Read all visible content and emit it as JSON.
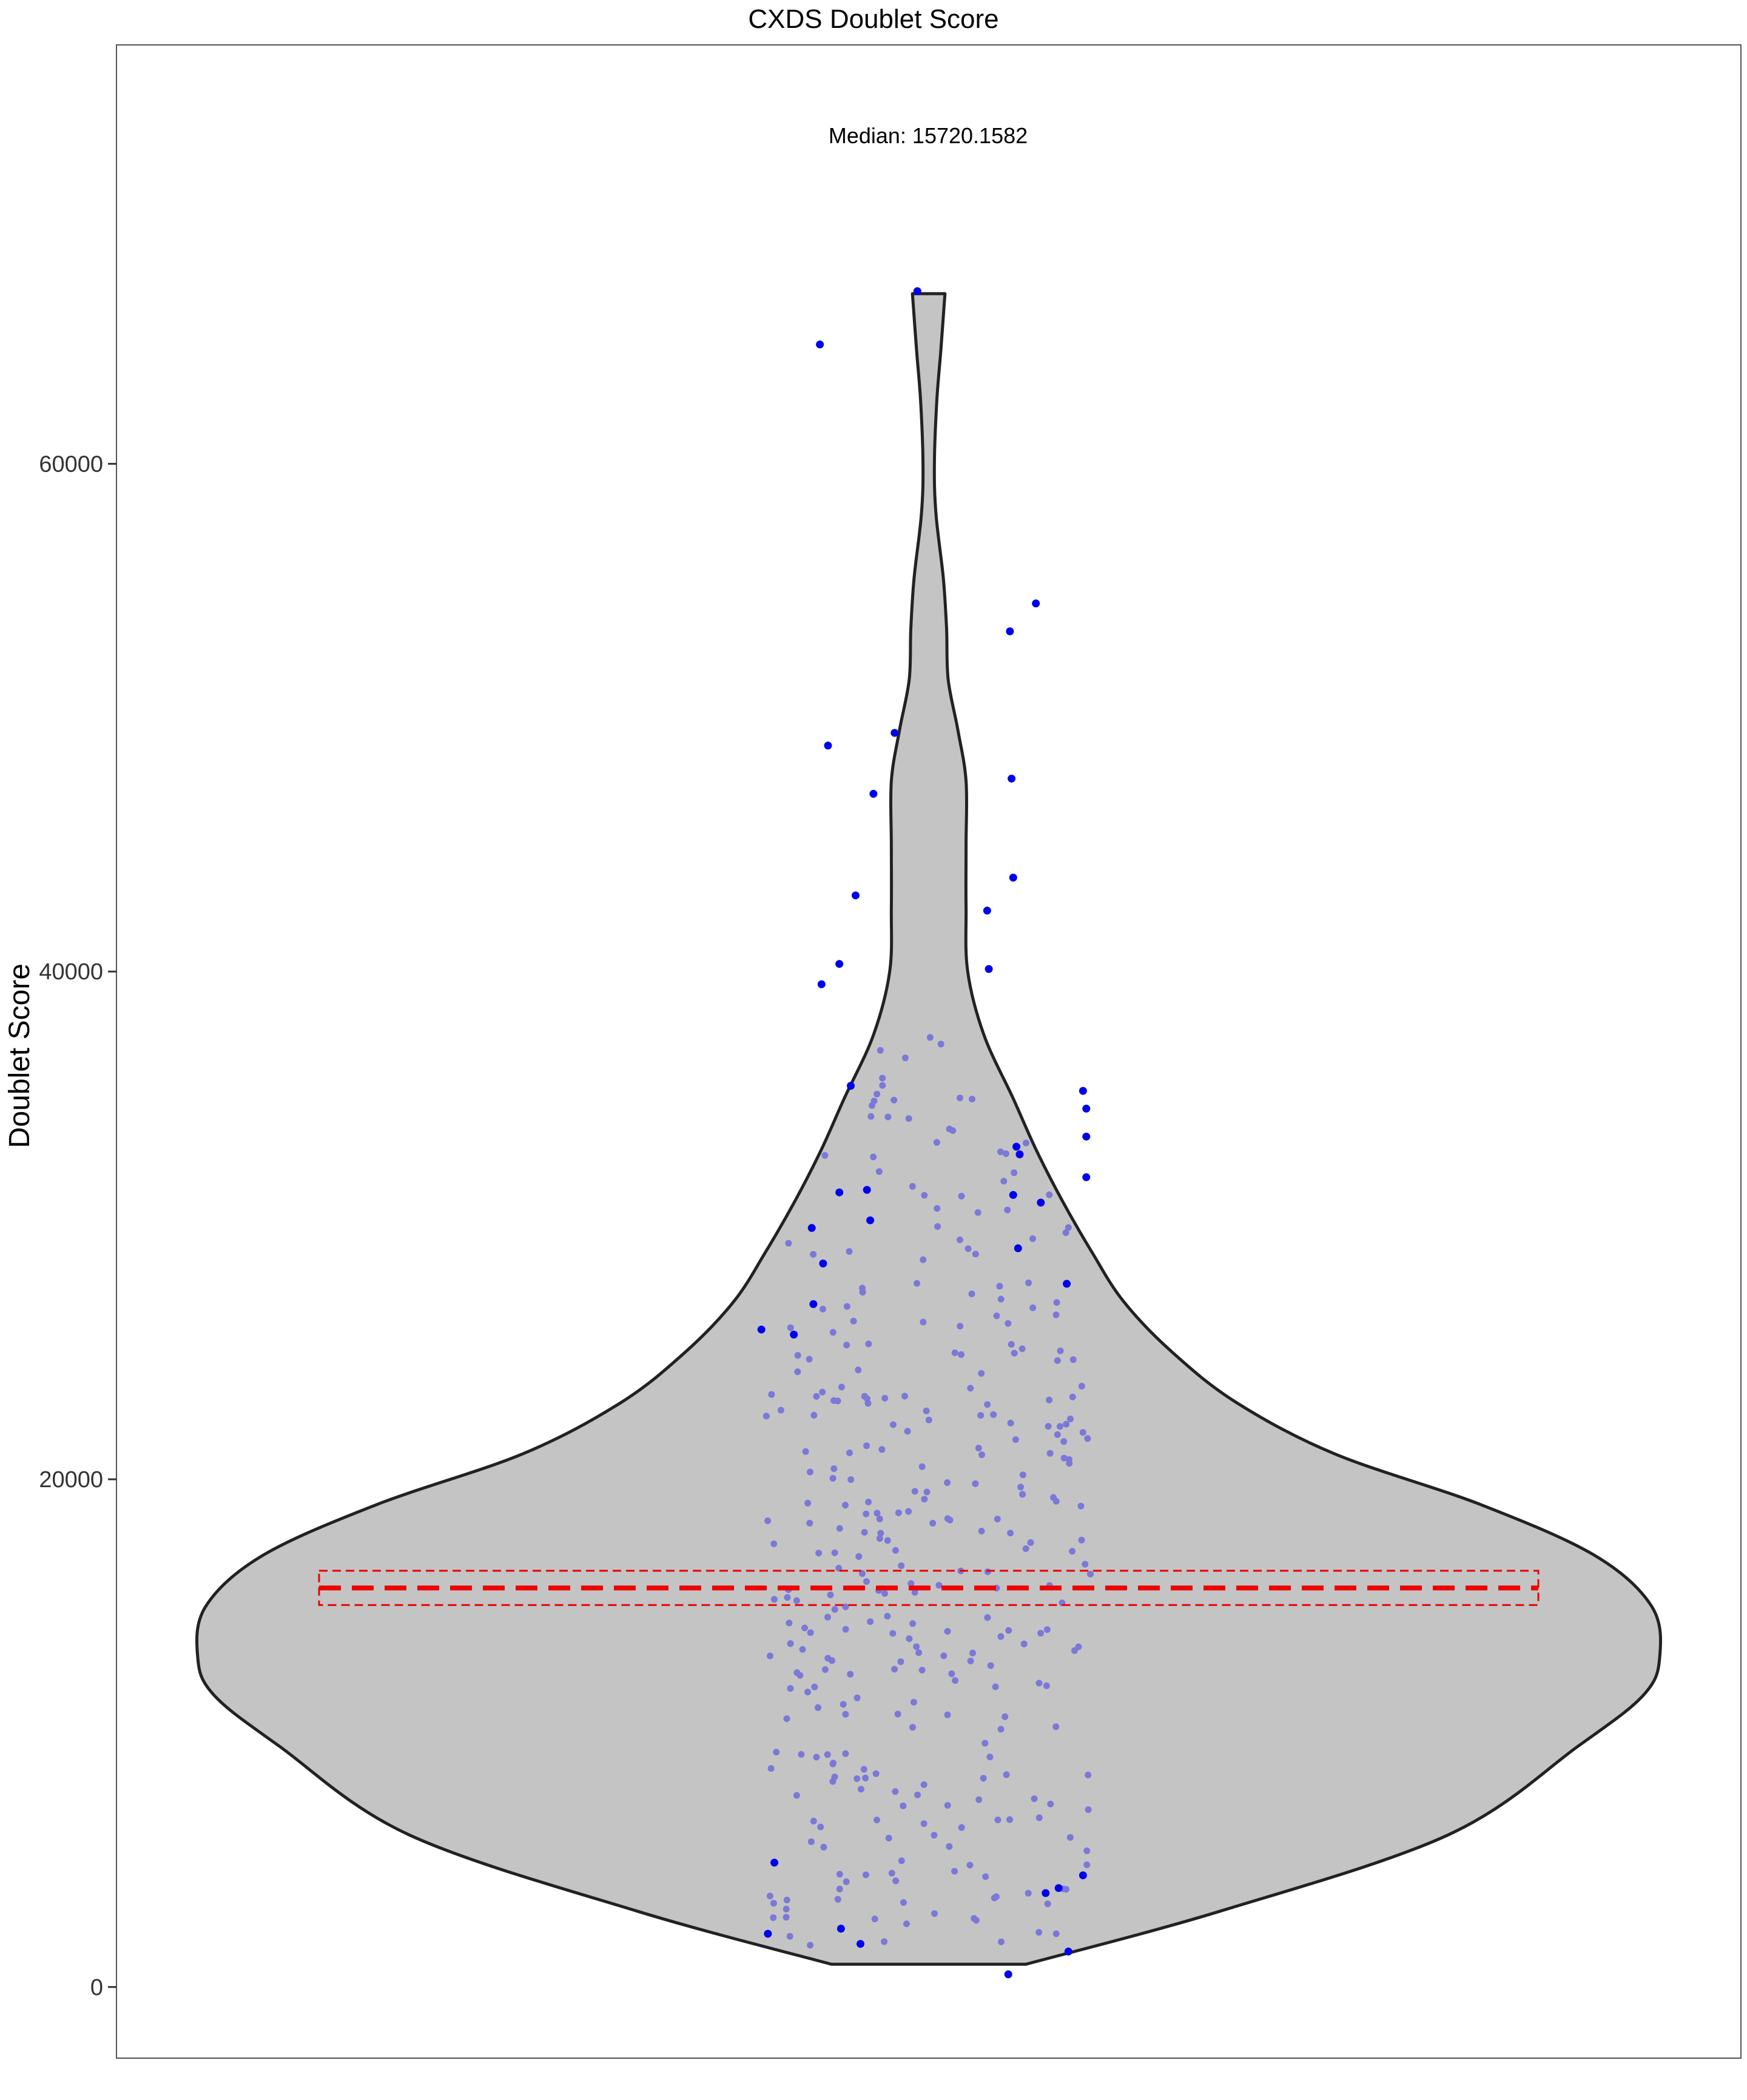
{
  "chart_data": {
    "type": "violin",
    "title": "CXDS Doublet Score",
    "xlabel": "",
    "ylabel": "Doublet Score",
    "annotation": "Median: 15720.1582",
    "ylim": [
      -2800,
      76500
    ],
    "yticks": [
      0,
      20000,
      40000,
      60000
    ],
    "ytick_labels": [
      "0",
      "20000",
      "40000",
      "60000"
    ],
    "grid": false,
    "legend": "none",
    "colors": {
      "violin_fill": "#c4c4c4",
      "violin_stroke": "#222222",
      "outlier_point": "#0000ee",
      "inner_point": "#7b78d8",
      "median_line": "#ee0000",
      "frame": "#555555"
    },
    "median": 15720.1582,
    "median_band": [
      15050,
      16400
    ],
    "violin_shape": {
      "y": [
        900,
        3000,
        6000,
        9500,
        11500,
        13000,
        15000,
        17000,
        19000,
        21000,
        23000,
        25000,
        27000,
        29000,
        31000,
        33000,
        35000,
        37500,
        40000,
        42500,
        45000,
        47500,
        49500,
        51500,
        53500,
        55500,
        58000,
        60000,
        62500,
        64500,
        66700
      ],
      "half_width": [
        0.06,
        0.18,
        0.32,
        0.4,
        0.44,
        0.45,
        0.445,
        0.41,
        0.34,
        0.25,
        0.19,
        0.15,
        0.12,
        0.1,
        0.082,
        0.066,
        0.052,
        0.034,
        0.024,
        0.023,
        0.023,
        0.023,
        0.018,
        0.012,
        0.011,
        0.009,
        0.0045,
        0.0035,
        0.005,
        0.0075,
        0.01
      ]
    },
    "outlier_points": [
      {
        "x": -0.007,
        "y": 66800
      },
      {
        "x": -0.067,
        "y": 64700
      },
      {
        "x": 0.066,
        "y": 54500
      },
      {
        "x": 0.05,
        "y": 53400
      },
      {
        "x": -0.062,
        "y": 48900
      },
      {
        "x": -0.021,
        "y": 49400
      },
      {
        "x": -0.034,
        "y": 47000
      },
      {
        "x": 0.051,
        "y": 47600
      },
      {
        "x": 0.052,
        "y": 43700
      },
      {
        "x": -0.045,
        "y": 43000
      },
      {
        "x": 0.036,
        "y": 42400
      },
      {
        "x": 0.037,
        "y": 40100
      },
      {
        "x": -0.055,
        "y": 40300
      },
      {
        "x": -0.066,
        "y": 39500
      },
      {
        "x": -0.048,
        "y": 35500
      },
      {
        "x": 0.095,
        "y": 35300
      },
      {
        "x": 0.097,
        "y": 34600
      },
      {
        "x": 0.097,
        "y": 33500
      },
      {
        "x": 0.054,
        "y": 33100
      },
      {
        "x": 0.056,
        "y": 32800
      },
      {
        "x": 0.097,
        "y": 31900
      },
      {
        "x": -0.055,
        "y": 31300
      },
      {
        "x": -0.038,
        "y": 31400
      },
      {
        "x": 0.052,
        "y": 31200
      },
      {
        "x": 0.069,
        "y": 30900
      },
      {
        "x": -0.072,
        "y": 29900
      },
      {
        "x": -0.036,
        "y": 30200
      },
      {
        "x": -0.065,
        "y": 28500
      },
      {
        "x": 0.055,
        "y": 29100
      },
      {
        "x": 0.085,
        "y": 27700
      },
      {
        "x": -0.071,
        "y": 26900
      },
      {
        "x": -0.103,
        "y": 25900
      },
      {
        "x": -0.083,
        "y": 25700
      },
      {
        "x": -0.095,
        "y": 4900
      },
      {
        "x": 0.095,
        "y": 4400
      },
      {
        "x": 0.072,
        "y": 3700
      },
      {
        "x": 0.08,
        "y": 3900
      },
      {
        "x": -0.099,
        "y": 2100
      },
      {
        "x": -0.054,
        "y": 2300
      },
      {
        "x": -0.042,
        "y": 1700
      },
      {
        "x": 0.086,
        "y": 1400
      },
      {
        "x": 0.049,
        "y": 500
      }
    ]
  }
}
